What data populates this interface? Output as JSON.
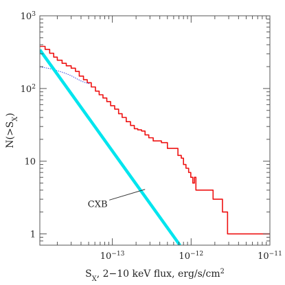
{
  "chart_data": {
    "type": "line",
    "title": "",
    "scale": {
      "x": "log",
      "y": "log"
    },
    "xlim": [
      1.2e-14,
      1e-11
    ],
    "ylim": [
      0.7,
      1000
    ],
    "grid": false,
    "xlabel": {
      "parts": [
        {
          "text": "S",
          "style": "normal"
        },
        {
          "text": "X",
          "style": "sub"
        },
        {
          "text": ", 2−10 keV flux, erg/s/cm",
          "style": "normal"
        },
        {
          "text": "2",
          "style": "sup"
        }
      ]
    },
    "ylabel": {
      "parts": [
        {
          "text": "N(>S",
          "style": "normal"
        },
        {
          "text": "X",
          "style": "sub"
        },
        {
          "text": ")",
          "style": "normal"
        }
      ]
    },
    "x_ticks": [
      {
        "value": 1e-13,
        "base": "10",
        "exp": "−13"
      },
      {
        "value": 1e-12,
        "base": "10",
        "exp": "−12"
      },
      {
        "value": 1e-11,
        "base": "10",
        "exp": "−11"
      }
    ],
    "y_ticks": [
      {
        "value": 1,
        "base": "1",
        "exp": ""
      },
      {
        "value": 10,
        "base": "10",
        "exp": ""
      },
      {
        "value": 100,
        "base": "10",
        "exp": "2"
      },
      {
        "value": 1000,
        "base": "10",
        "exp": "3"
      }
    ],
    "series": [
      {
        "color": "#ee1111",
        "style": "step",
        "width": 1.6,
        "points": [
          [
            1.2e-14,
            380
          ],
          [
            1.4e-14,
            345
          ],
          [
            1.6e-14,
            305
          ],
          [
            1.8e-14,
            270
          ],
          [
            2e-14,
            245
          ],
          [
            2.3e-14,
            222
          ],
          [
            2.6e-14,
            205
          ],
          [
            3e-14,
            190
          ],
          [
            3.4e-14,
            172
          ],
          [
            3.8e-14,
            148
          ],
          [
            4.3e-14,
            132
          ],
          [
            4.8e-14,
            120
          ],
          [
            5.4e-14,
            105
          ],
          [
            6.1e-14,
            92
          ],
          [
            6.8e-14,
            82
          ],
          [
            7.6e-14,
            74
          ],
          [
            8.5e-14,
            66
          ],
          [
            9.5e-14,
            58
          ],
          [
            1.07e-13,
            52
          ],
          [
            1.2e-13,
            45
          ],
          [
            1.33e-13,
            40
          ],
          [
            1.5e-13,
            35
          ],
          [
            1.7e-13,
            31
          ],
          [
            1.9e-13,
            28
          ],
          [
            2.1e-13,
            27
          ],
          [
            2.35e-13,
            26
          ],
          [
            2.6e-13,
            23
          ],
          [
            2.9e-13,
            21
          ],
          [
            3.3e-13,
            19
          ],
          [
            4.2e-13,
            18
          ],
          [
            5e-13,
            15
          ],
          [
            6.8e-13,
            12
          ],
          [
            7.5e-13,
            11
          ],
          [
            8e-13,
            9
          ],
          [
            8.6e-13,
            8
          ],
          [
            9.3e-13,
            7
          ],
          [
            9.9e-13,
            6
          ],
          [
            1.05e-12,
            5
          ],
          [
            1.1e-12,
            6
          ],
          [
            1.15e-12,
            4
          ],
          [
            1.65e-12,
            4
          ],
          [
            1.9e-12,
            3
          ],
          [
            2.5e-12,
            2
          ],
          [
            2.9e-12,
            1
          ],
          [
            1e-11,
            1
          ]
        ]
      },
      {
        "color": "#3344dd",
        "style": "dotted",
        "width": 1,
        "points": [
          [
            1.2e-14,
            198
          ],
          [
            1.6e-14,
            188
          ],
          [
            2e-14,
            176
          ],
          [
            2.5e-14,
            163
          ],
          [
            3e-14,
            150
          ],
          [
            3.5e-14,
            137
          ],
          [
            4e-14,
            127
          ],
          [
            4.6e-14,
            120
          ],
          [
            5.2e-14,
            116
          ]
        ]
      },
      {
        "color": "#00e5ee",
        "style": "solid",
        "width": 4.5,
        "points": [
          [
            1.2e-14,
            340
          ],
          [
            7.2e-13,
            0.7
          ]
        ]
      }
    ],
    "annotations": [
      {
        "text": "CXB",
        "x": 6.5e-14,
        "y": 2.35,
        "pointer_to": [
          2.6e-13,
          4.1
        ]
      }
    ]
  }
}
